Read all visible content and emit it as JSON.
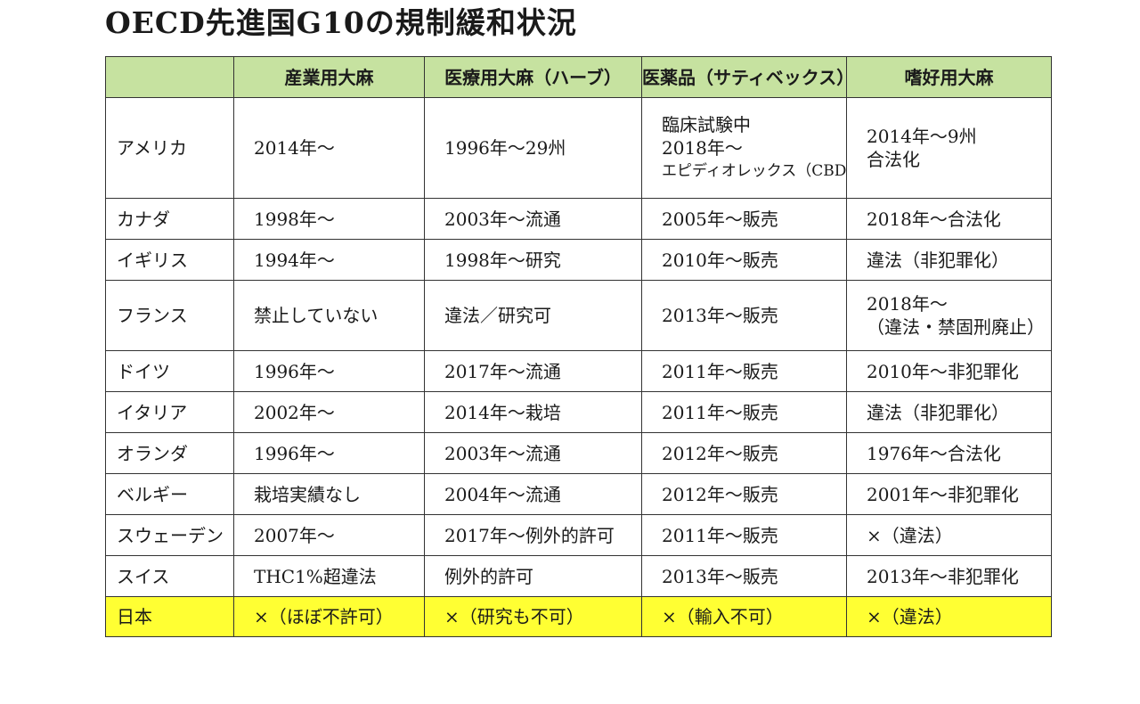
{
  "title": "OECD先進国G10の規制緩和状況",
  "table": {
    "headers": [
      "",
      "産業用大麻",
      "医療用大麻（ハーブ）",
      "医薬品（サティベックス）",
      "嗜好用大麻"
    ],
    "rows": [
      {
        "country": "アメリカ",
        "industrial": "2014年～",
        "medical": "1996年～29州",
        "pharma": [
          "臨床試験中",
          "2018年～",
          "エピディオレックス（CBD）"
        ],
        "recreational": [
          "2014年～9州",
          "合法化"
        ]
      },
      {
        "country": "カナダ",
        "industrial": "1998年～",
        "medical": "2003年～流通",
        "pharma": "2005年～販売",
        "recreational": "2018年～合法化"
      },
      {
        "country": "イギリス",
        "industrial": "1994年～",
        "medical": "1998年～研究",
        "pharma": "2010年～販売",
        "recreational": "違法（非犯罪化）"
      },
      {
        "country": "フランス",
        "industrial": "禁止していない",
        "medical": "違法／研究可",
        "pharma": "2013年～販売",
        "recreational": [
          "2018年～",
          "（違法・禁固刑廃止）"
        ]
      },
      {
        "country": "ドイツ",
        "industrial": "1996年～",
        "medical": "2017年～流通",
        "pharma": "2011年～販売",
        "recreational": "2010年～非犯罪化"
      },
      {
        "country": "イタリア",
        "industrial": "2002年～",
        "medical": "2014年～栽培",
        "pharma": "2011年～販売",
        "recreational": "違法（非犯罪化）"
      },
      {
        "country": "オランダ",
        "industrial": "1996年～",
        "medical": "2003年～流通",
        "pharma": "2012年～販売",
        "recreational": "1976年～合法化"
      },
      {
        "country": "ベルギー",
        "industrial": "栽培実績なし",
        "medical": "2004年～流通",
        "pharma": "2012年～販売",
        "recreational": "2001年～非犯罪化"
      },
      {
        "country": "スウェーデン",
        "industrial": "2007年～",
        "medical": "2017年～例外的許可",
        "pharma": "2011年～販売",
        "recreational": "×（違法）"
      },
      {
        "country": "スイス",
        "industrial": "THC1%超違法",
        "medical": "例外的許可",
        "pharma": "2013年～販売",
        "recreational": "2013年～非犯罪化"
      },
      {
        "country": "日本",
        "industrial": "×（ほぼ不許可）",
        "medical": "×（研究も不可）",
        "pharma": "×（輸入不可）",
        "recreational": "×（違法）"
      }
    ]
  },
  "colors": {
    "header_bg": "#c6e2a0",
    "highlight_bg": "#ffff33",
    "border": "#333333",
    "text": "#1a1a1a"
  }
}
